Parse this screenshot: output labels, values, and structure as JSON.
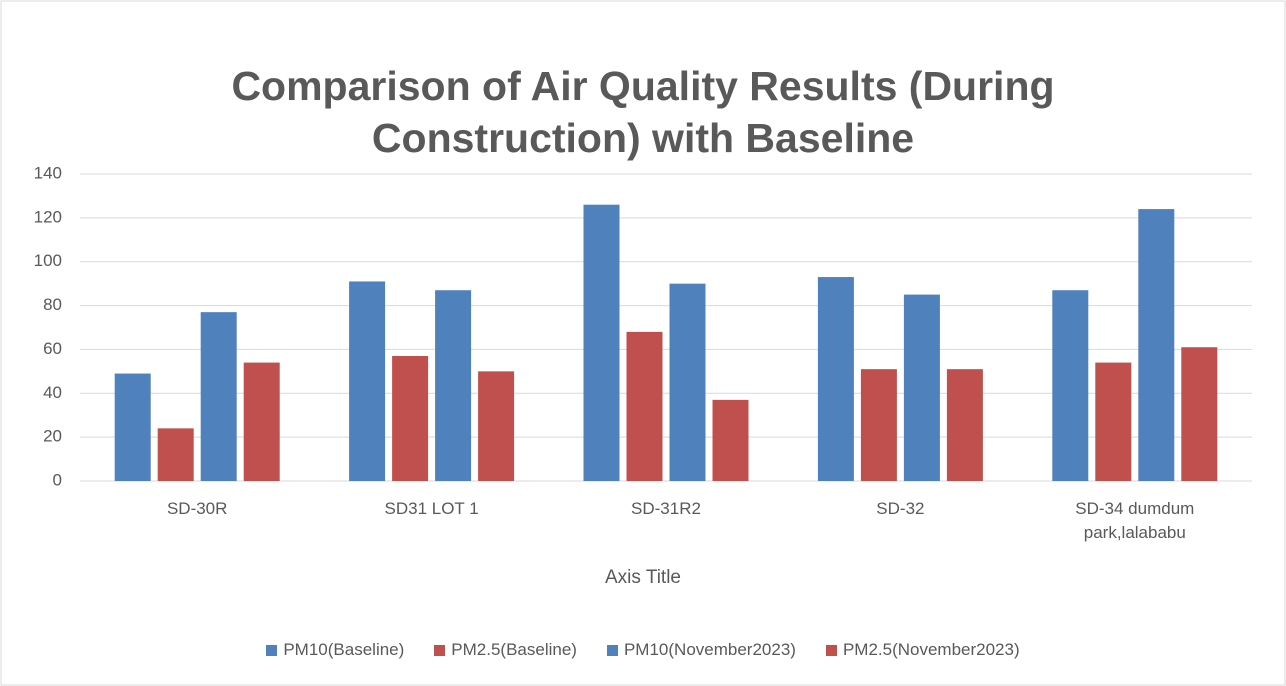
{
  "chart_data": {
    "type": "bar",
    "title": "Comparison of Air Quality Results (During Construction) with Baseline",
    "x_label": "Axis Title",
    "categories": [
      "SD-30R",
      "SD31 LOT 1",
      "SD-31R2",
      "SD-32",
      "SD-34 dumdum park,lalababu"
    ],
    "series": [
      {
        "name": "PM10(Baseline)",
        "color": "#4f81bd",
        "values": [
          49,
          91,
          126,
          93,
          87
        ]
      },
      {
        "name": "PM2.5(Baseline)",
        "color": "#c0504d",
        "values": [
          24,
          57,
          68,
          51,
          54
        ]
      },
      {
        "name": "PM10(November2023)",
        "color": "#4f81bd",
        "values": [
          77,
          87,
          90,
          85,
          124
        ]
      },
      {
        "name": "PM2.5(November2023)",
        "color": "#c0504d",
        "values": [
          54,
          50,
          37,
          51,
          61
        ]
      }
    ],
    "ylim": [
      0,
      140
    ],
    "yticks": [
      0,
      20,
      40,
      60,
      80,
      100,
      120,
      140
    ],
    "grid": true,
    "legend": "bottom"
  }
}
